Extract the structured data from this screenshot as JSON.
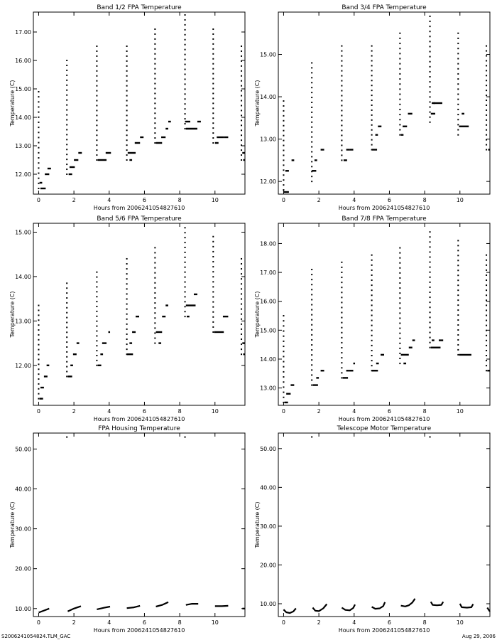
{
  "footer": {
    "left": "S2006241054824.TLM_GAC",
    "right": "Aug 29, 2006"
  },
  "chart_data": [
    {
      "type": "scatter",
      "title": "Band 1/2 FPA Temperature",
      "xlabel": "Hours from 2006241054827610",
      "ylabel": "Temperature (C)",
      "xlim": [
        -0.3,
        11.7
      ],
      "ylim": [
        11.3,
        17.7
      ],
      "xticks": [
        0,
        2,
        4,
        6,
        8,
        10
      ],
      "xtick_labels": [
        "0",
        "2",
        "4",
        "6",
        "8",
        "10"
      ],
      "yticks": [
        12,
        13,
        14,
        15,
        16,
        17
      ],
      "ytick_labels": [
        "12.00",
        "13.00",
        "14.00",
        "15.00",
        "16.00",
        "17.00"
      ],
      "color": "#000000",
      "vertical_bursts": [
        [
          0.0,
          11.5,
          14.9
        ],
        [
          1.6,
          12.0,
          16.0
        ],
        [
          3.3,
          12.5,
          16.5
        ],
        [
          5.0,
          12.5,
          16.5
        ],
        [
          6.6,
          13.1,
          17.1
        ],
        [
          8.3,
          13.6,
          17.6
        ],
        [
          9.9,
          13.1,
          17.1
        ],
        [
          11.5,
          12.5,
          16.5
        ]
      ],
      "segments": [
        [
          0.05,
          0.2,
          11.7
        ],
        [
          0.1,
          0.4,
          11.5
        ],
        [
          0.35,
          0.6,
          12.0
        ],
        [
          0.5,
          0.7,
          12.2
        ],
        [
          1.7,
          1.9,
          12.0
        ],
        [
          1.75,
          2.05,
          12.25
        ],
        [
          2.0,
          2.25,
          12.5
        ],
        [
          2.25,
          2.45,
          12.75
        ],
        [
          3.35,
          3.85,
          12.5
        ],
        [
          3.8,
          4.1,
          12.75
        ],
        [
          5.05,
          5.5,
          12.75
        ],
        [
          5.15,
          5.3,
          12.5
        ],
        [
          5.45,
          5.75,
          13.1
        ],
        [
          5.75,
          5.95,
          13.3
        ],
        [
          6.65,
          7.0,
          13.1
        ],
        [
          6.95,
          7.2,
          13.3
        ],
        [
          7.2,
          7.35,
          13.6
        ],
        [
          7.35,
          7.5,
          13.85
        ],
        [
          8.35,
          9.0,
          13.6
        ],
        [
          8.3,
          8.6,
          13.85
        ],
        [
          9.0,
          9.2,
          13.85
        ],
        [
          10.0,
          10.2,
          13.1
        ],
        [
          10.1,
          10.5,
          13.3
        ],
        [
          10.5,
          10.75,
          13.3
        ],
        [
          11.55,
          11.7,
          12.75
        ],
        [
          11.6,
          11.7,
          12.5
        ]
      ]
    },
    {
      "type": "scatter",
      "title": "Band 3/4 FPA Temperature",
      "xlabel": "Hours from 2006241054827610",
      "ylabel": "Temperature (C)",
      "xlim": [
        -0.3,
        11.7
      ],
      "ylim": [
        11.7,
        16.0
      ],
      "xticks": [
        0,
        2,
        4,
        6,
        8,
        10
      ],
      "xtick_labels": [
        "0",
        "2",
        "4",
        "6",
        "8",
        "10"
      ],
      "yticks": [
        12,
        13,
        14,
        15
      ],
      "ytick_labels": [
        "12.00",
        "13.00",
        "14.00",
        "15.00"
      ],
      "color": "#000000",
      "vertical_bursts": [
        [
          0.0,
          11.8,
          13.9
        ],
        [
          1.6,
          12.0,
          14.8
        ],
        [
          3.3,
          12.5,
          15.2
        ],
        [
          5.0,
          12.75,
          15.2
        ],
        [
          6.6,
          13.1,
          15.5
        ],
        [
          8.3,
          13.4,
          15.9
        ],
        [
          9.9,
          13.1,
          15.5
        ],
        [
          11.5,
          12.75,
          15.2
        ]
      ],
      "segments": [
        [
          0.0,
          0.3,
          11.75
        ],
        [
          0.1,
          0.3,
          12.25
        ],
        [
          0.45,
          0.6,
          12.5
        ],
        [
          1.6,
          1.85,
          12.25
        ],
        [
          1.75,
          1.9,
          12.5
        ],
        [
          2.1,
          2.3,
          12.75
        ],
        [
          3.4,
          3.6,
          12.5
        ],
        [
          3.55,
          3.75,
          12.75
        ],
        [
          3.75,
          3.95,
          12.75
        ],
        [
          5.0,
          5.3,
          12.75
        ],
        [
          5.2,
          5.35,
          13.1
        ],
        [
          5.35,
          5.55,
          13.3
        ],
        [
          6.65,
          6.8,
          13.1
        ],
        [
          6.75,
          7.0,
          13.3
        ],
        [
          7.05,
          7.3,
          13.6
        ],
        [
          8.35,
          8.6,
          13.6
        ],
        [
          8.5,
          9.0,
          13.85
        ],
        [
          8.4,
          8.6,
          13.85
        ],
        [
          9.95,
          10.5,
          13.3
        ],
        [
          10.1,
          10.25,
          13.6
        ],
        [
          11.6,
          11.7,
          12.75
        ]
      ]
    },
    {
      "type": "scatter",
      "title": "Band 5/6 FPA Temperature",
      "xlabel": "Hours from 2006241054827610",
      "ylabel": "Temperature (C)",
      "xlim": [
        -0.3,
        11.7
      ],
      "ylim": [
        11.1,
        15.2
      ],
      "xticks": [
        0,
        2,
        4,
        6,
        8,
        10
      ],
      "xtick_labels": [
        "0",
        "2",
        "4",
        "6",
        "8",
        "10"
      ],
      "yticks": [
        12,
        13,
        14,
        15
      ],
      "ytick_labels": [
        "12.00",
        "13.00",
        "14.00",
        "15.00"
      ],
      "color": "#000000",
      "vertical_bursts": [
        [
          0.0,
          11.25,
          13.35
        ],
        [
          1.6,
          11.75,
          13.85
        ],
        [
          3.3,
          12.0,
          14.1
        ],
        [
          5.0,
          12.25,
          14.4
        ],
        [
          6.6,
          12.5,
          14.65
        ],
        [
          8.3,
          13.1,
          15.1
        ],
        [
          9.9,
          12.75,
          14.9
        ],
        [
          11.5,
          12.25,
          14.4
        ]
      ],
      "segments": [
        [
          0.05,
          0.25,
          11.25
        ],
        [
          0.1,
          0.3,
          11.5
        ],
        [
          0.3,
          0.5,
          11.75
        ],
        [
          0.45,
          0.6,
          12.0
        ],
        [
          1.65,
          1.9,
          11.75
        ],
        [
          1.8,
          1.95,
          12.0
        ],
        [
          1.95,
          2.15,
          12.25
        ],
        [
          2.15,
          2.3,
          12.5
        ],
        [
          3.35,
          3.55,
          12.0
        ],
        [
          3.5,
          3.65,
          12.25
        ],
        [
          3.6,
          3.85,
          12.5
        ],
        [
          3.95,
          4.05,
          12.75
        ],
        [
          5.0,
          5.35,
          12.25
        ],
        [
          5.15,
          5.3,
          12.5
        ],
        [
          5.3,
          5.5,
          12.75
        ],
        [
          5.5,
          5.7,
          13.1
        ],
        [
          6.65,
          7.0,
          12.75
        ],
        [
          6.8,
          6.95,
          12.5
        ],
        [
          7.0,
          7.2,
          13.1
        ],
        [
          7.2,
          7.35,
          13.35
        ],
        [
          8.35,
          8.9,
          13.35
        ],
        [
          8.4,
          8.55,
          13.1
        ],
        [
          8.8,
          9.0,
          13.6
        ],
        [
          9.95,
          10.5,
          12.75
        ],
        [
          10.45,
          10.75,
          13.1
        ],
        [
          11.55,
          11.7,
          12.5
        ],
        [
          11.6,
          11.7,
          12.25
        ]
      ]
    },
    {
      "type": "scatter",
      "title": "Band 7/8 FPA Temperature",
      "xlabel": "Hours from 2006241054827610",
      "ylabel": "Temperature (C)",
      "xlim": [
        -0.3,
        11.7
      ],
      "ylim": [
        12.4,
        18.7
      ],
      "xticks": [
        0,
        2,
        4,
        6,
        8,
        10
      ],
      "xtick_labels": [
        "0",
        "2",
        "4",
        "6",
        "8",
        "10"
      ],
      "yticks": [
        13,
        14,
        15,
        16,
        17,
        18
      ],
      "ytick_labels": [
        "13.00",
        "14.00",
        "15.00",
        "16.00",
        "17.00",
        "18.00"
      ],
      "color": "#000000",
      "vertical_bursts": [
        [
          0.0,
          12.5,
          15.5
        ],
        [
          1.6,
          13.1,
          17.1
        ],
        [
          3.3,
          13.35,
          17.35
        ],
        [
          5.0,
          13.6,
          17.6
        ],
        [
          6.6,
          13.85,
          17.85
        ],
        [
          8.3,
          14.4,
          18.4
        ],
        [
          9.9,
          14.15,
          18.1
        ],
        [
          11.5,
          13.6,
          17.6
        ]
      ],
      "segments": [
        [
          0.05,
          0.25,
          12.5
        ],
        [
          0.15,
          0.4,
          12.8
        ],
        [
          0.4,
          0.6,
          13.1
        ],
        [
          1.65,
          1.95,
          13.1
        ],
        [
          1.85,
          2.0,
          13.35
        ],
        [
          2.1,
          2.3,
          13.6
        ],
        [
          3.35,
          3.65,
          13.35
        ],
        [
          3.55,
          3.7,
          13.6
        ],
        [
          3.7,
          3.95,
          13.6
        ],
        [
          3.95,
          4.05,
          13.85
        ],
        [
          5.0,
          5.35,
          13.6
        ],
        [
          5.25,
          5.4,
          13.85
        ],
        [
          5.5,
          5.7,
          14.15
        ],
        [
          6.65,
          7.1,
          14.15
        ],
        [
          6.8,
          6.95,
          13.85
        ],
        [
          7.1,
          7.3,
          14.4
        ],
        [
          7.3,
          7.45,
          14.65
        ],
        [
          8.35,
          8.9,
          14.4
        ],
        [
          8.4,
          8.55,
          14.65
        ],
        [
          8.8,
          9.05,
          14.65
        ],
        [
          9.95,
          10.65,
          14.15
        ],
        [
          11.55,
          11.7,
          13.6
        ]
      ]
    },
    {
      "type": "scatter",
      "title": "FPA Housing Temperature",
      "xlabel": "Hours from 2006241054827610",
      "ylabel": "Temperature (C)",
      "xlim": [
        -0.3,
        11.7
      ],
      "ylim": [
        8.0,
        54.0
      ],
      "xticks": [
        0,
        2,
        4,
        6,
        8,
        10
      ],
      "xtick_labels": [
        "0",
        "2",
        "4",
        "6",
        "8",
        "10"
      ],
      "yticks": [
        10,
        20,
        30,
        40,
        50
      ],
      "ytick_labels": [
        "10.00",
        "20.00",
        "30.00",
        "40.00",
        "50.00"
      ],
      "color": "#000000",
      "outliers": [
        [
          1.6,
          53.0
        ],
        [
          8.3,
          53.0
        ]
      ],
      "lines": [
        {
          "x": [
            0.0,
            0.3,
            0.6
          ],
          "y": [
            9.0,
            9.5,
            10.0
          ]
        },
        {
          "x": [
            1.65,
            2.0,
            2.4
          ],
          "y": [
            9.3,
            10.0,
            10.6
          ]
        },
        {
          "x": [
            3.3,
            3.7,
            4.05
          ],
          "y": [
            9.8,
            10.2,
            10.5
          ]
        },
        {
          "x": [
            5.0,
            5.4,
            5.75
          ],
          "y": [
            10.1,
            10.3,
            10.7
          ]
        },
        {
          "x": [
            6.65,
            7.0,
            7.35
          ],
          "y": [
            10.5,
            10.9,
            11.6
          ]
        },
        {
          "x": [
            8.35,
            8.7,
            9.05
          ],
          "y": [
            10.9,
            11.2,
            11.2
          ]
        },
        {
          "x": [
            10.0,
            10.4,
            10.75
          ],
          "y": [
            10.6,
            10.6,
            10.7
          ]
        },
        {
          "x": [
            11.55,
            11.7
          ],
          "y": [
            10.0,
            10.0
          ]
        }
      ]
    },
    {
      "type": "scatter",
      "title": "Telescope Motor Temperature",
      "xlabel": "Hours from 2006241054827610",
      "ylabel": "Temperature (C)",
      "xlim": [
        -0.3,
        11.7
      ],
      "ylim": [
        6.7,
        54.0
      ],
      "xticks": [
        0,
        2,
        4,
        6,
        8,
        10
      ],
      "xtick_labels": [
        "0",
        "2",
        "4",
        "6",
        "8",
        "10"
      ],
      "yticks": [
        10,
        20,
        30,
        40,
        50
      ],
      "ytick_labels": [
        "10.00",
        "20.00",
        "30.00",
        "40.00",
        "50.00"
      ],
      "color": "#000000",
      "outliers": [
        [
          1.6,
          53.0
        ],
        [
          8.3,
          53.0
        ]
      ],
      "lines": [
        {
          "x": [
            0.0,
            0.15,
            0.35,
            0.55,
            0.7
          ],
          "y": [
            8.5,
            7.8,
            7.6,
            8.0,
            8.8
          ]
        },
        {
          "x": [
            1.65,
            1.8,
            2.0,
            2.25,
            2.45
          ],
          "y": [
            9.0,
            8.2,
            8.1,
            8.8,
            9.9
          ]
        },
        {
          "x": [
            3.3,
            3.5,
            3.75,
            3.95,
            4.05
          ],
          "y": [
            9.0,
            8.4,
            8.3,
            8.9,
            9.8
          ]
        },
        {
          "x": [
            5.0,
            5.2,
            5.45,
            5.65,
            5.75
          ],
          "y": [
            9.2,
            8.7,
            8.8,
            9.4,
            10.4
          ]
        },
        {
          "x": [
            6.65,
            6.9,
            7.1,
            7.3,
            7.45
          ],
          "y": [
            9.5,
            9.3,
            9.6,
            10.3,
            11.3
          ]
        },
        {
          "x": [
            8.35,
            8.45,
            8.7,
            8.95,
            9.05
          ],
          "y": [
            10.5,
            9.7,
            9.6,
            9.7,
            10.5
          ]
        },
        {
          "x": [
            10.0,
            10.1,
            10.4,
            10.65,
            10.75
          ],
          "y": [
            10.0,
            9.1,
            9.0,
            9.1,
            9.9
          ]
        },
        {
          "x": [
            11.55,
            11.65,
            11.7
          ],
          "y": [
            9.0,
            8.3,
            8.0
          ]
        }
      ]
    }
  ]
}
